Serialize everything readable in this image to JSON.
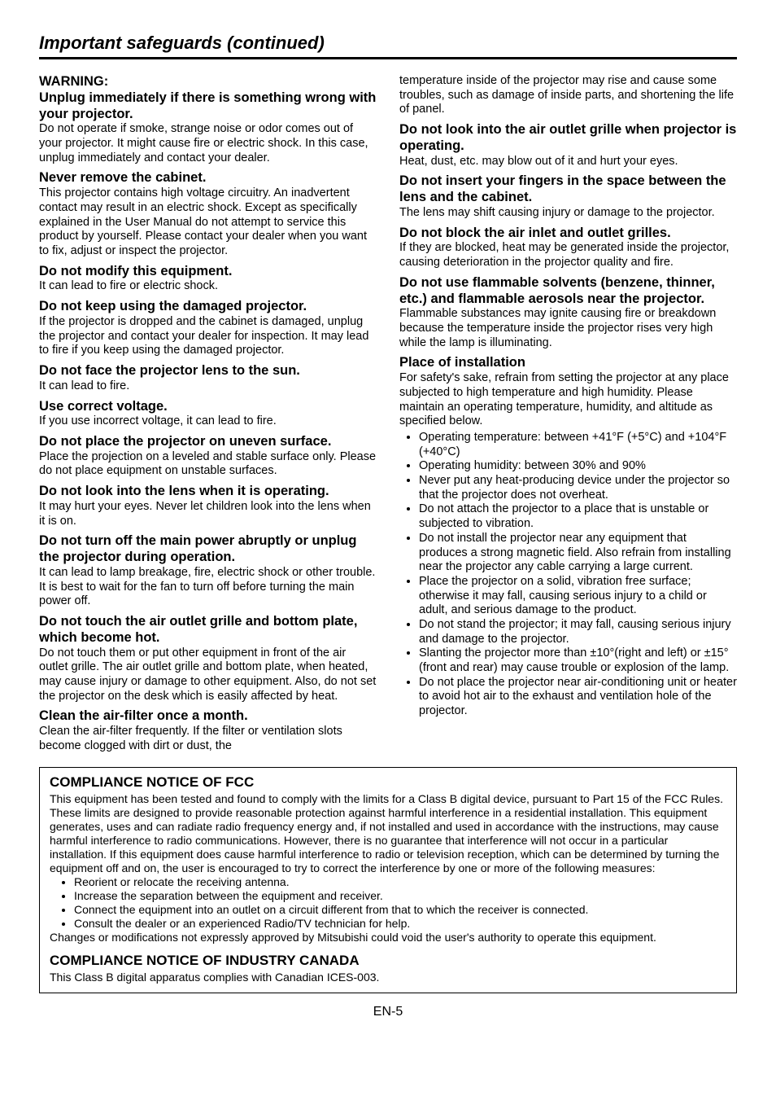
{
  "page_title": "Important safeguards (continued)",
  "page_number": "EN-5",
  "left": {
    "warning_label": "WARNING:",
    "s1_h": "Unplug immediately if there is something wrong with your projector.",
    "s1_b": "Do not operate if smoke, strange noise or odor comes out of your projector. It might cause fire or electric shock. In this case, unplug immediately and contact your dealer.",
    "s2_h": "Never remove the cabinet.",
    "s2_b": "This projector contains high voltage circuitry. An inadvertent contact may result in an electric shock. Except as specifically explained in the User Manual do not attempt to service this product by yourself. Please contact your dealer when you want to fix, adjust or inspect the projector.",
    "s3_h": "Do not modify this equipment.",
    "s3_b": "It can lead to fire or electric shock.",
    "s4_h": "Do not keep using the damaged projector.",
    "s4_b": "If the projector is dropped and the cabinet is damaged, unplug the projector and contact your dealer for inspection. It may lead to fire if you keep using the damaged projector.",
    "s5_h": "Do not face the projector lens to the sun.",
    "s5_b": "It can lead to fire.",
    "s6_h": "Use correct voltage.",
    "s6_b": "If you use incorrect voltage, it can lead to fire.",
    "s7_h": "Do not place the projector on uneven surface.",
    "s7_b": "Place the projection on a leveled and stable surface only. Please do not place equipment on unstable surfaces.",
    "s8_h": "Do not look into the lens when it is operating.",
    "s8_b": "It may hurt your eyes. Never let children look into the lens when it is on.",
    "s9_h": "Do not turn off the main power abruptly or unplug the projector during operation.",
    "s9_b": "It can lead to lamp breakage, fire, electric shock or other trouble. It is best to wait for the fan to turn off before turning the main power off.",
    "s10_h": "Do not touch the air outlet grille and bottom plate, which become hot.",
    "s10_b": "Do not touch them or put other equipment in front of the air outlet grille. The air outlet grille and bottom plate, when heated, may cause injury or damage to other equipment. Also, do not set the projector on the desk which is easily affected by heat.",
    "s11_h": "Clean the air-filter once a month.",
    "s11_b": "Clean the air-filter frequently. If the filter or ventilation slots become clogged with dirt or dust, the"
  },
  "right": {
    "cont_b": "temperature inside of the projector may rise and cause some troubles, such as damage of inside parts, and shortening the life of panel.",
    "r1_h": "Do not look into the air outlet grille when projector is operating.",
    "r1_b": "Heat, dust, etc. may blow out of it and hurt your eyes.",
    "r2_h": "Do not insert your fingers in the space between the lens and the cabinet.",
    "r2_b": "The lens may shift causing injury or damage to the projector.",
    "r3_h": "Do not block the air inlet and outlet grilles.",
    "r3_b": "If they are blocked, heat may be generated inside the projector, causing deterioration in the projector quality and fire.",
    "r4_h": "Do not use flammable solvents (benzene, thinner, etc.) and flammable aerosols near the projector.",
    "r4_b": "Flammable substances may ignite causing fire or breakdown because the temperature inside the projector rises very high while the lamp is illuminating.",
    "r5_h": "Place of installation",
    "r5_b": "For safety's sake, refrain from setting the projector at any place subjected to high temperature and high humidity. Please maintain an operating temperature, humidity, and altitude as specified below.",
    "r5_bullets": [
      "Operating temperature: between +41°F (+5°C) and +104°F (+40°C)",
      "Operating humidity: between 30% and 90%",
      "Never put any heat-producing device under the projector so that the projector does not overheat.",
      "Do not attach the projector to a place that is unstable or subjected to vibration.",
      "Do not install the projector near any equipment that produces a strong magnetic field. Also refrain from installing near the projector any cable carrying a large current.",
      "Place the projector on a solid, vibration free surface; otherwise it may fall, causing serious injury to a child or adult, and serious damage to the product.",
      "Do not stand the projector; it may fall, causing serious injury and damage to the projector.",
      "Slanting the projector more than ±10°(right and left) or ±15°(front and rear) may cause trouble or explosion of the lamp.",
      "Do not place the projector near air-conditioning unit or heater to avoid hot air to the exhaust and ventilation hole of the projector."
    ]
  },
  "compliance": {
    "fcc_h": "COMPLIANCE NOTICE OF FCC",
    "fcc_b1": "This equipment has been tested and found to comply with the limits for a Class B digital device, pursuant to Part 15 of the FCC Rules. These limits are designed to provide reasonable protection against harmful interference in a residential installation. This equipment generates, uses and can radiate radio frequency energy and, if not installed and used in accordance with the instructions, may cause harmful interference to radio communications. However, there is no guarantee that interference will not occur in a particular installation. If this equipment does cause harmful interference to radio or television reception, which can be determined by turning the equipment off and on, the user is encouraged to try to correct the interference by one or more of the following measures:",
    "fcc_bullets": [
      "Reorient or relocate the receiving antenna.",
      "Increase the separation between the equipment and receiver.",
      "Connect the equipment into an outlet on a circuit different from that to which the receiver is connected.",
      "Consult the dealer or an experienced Radio/TV technician for help."
    ],
    "fcc_b2": "Changes or modifications not expressly approved by Mitsubishi could void the user's authority to operate this equipment.",
    "canada_h": "COMPLIANCE NOTICE OF INDUSTRY CANADA",
    "canada_b": "This Class B digital apparatus complies with Canadian ICES-003."
  }
}
